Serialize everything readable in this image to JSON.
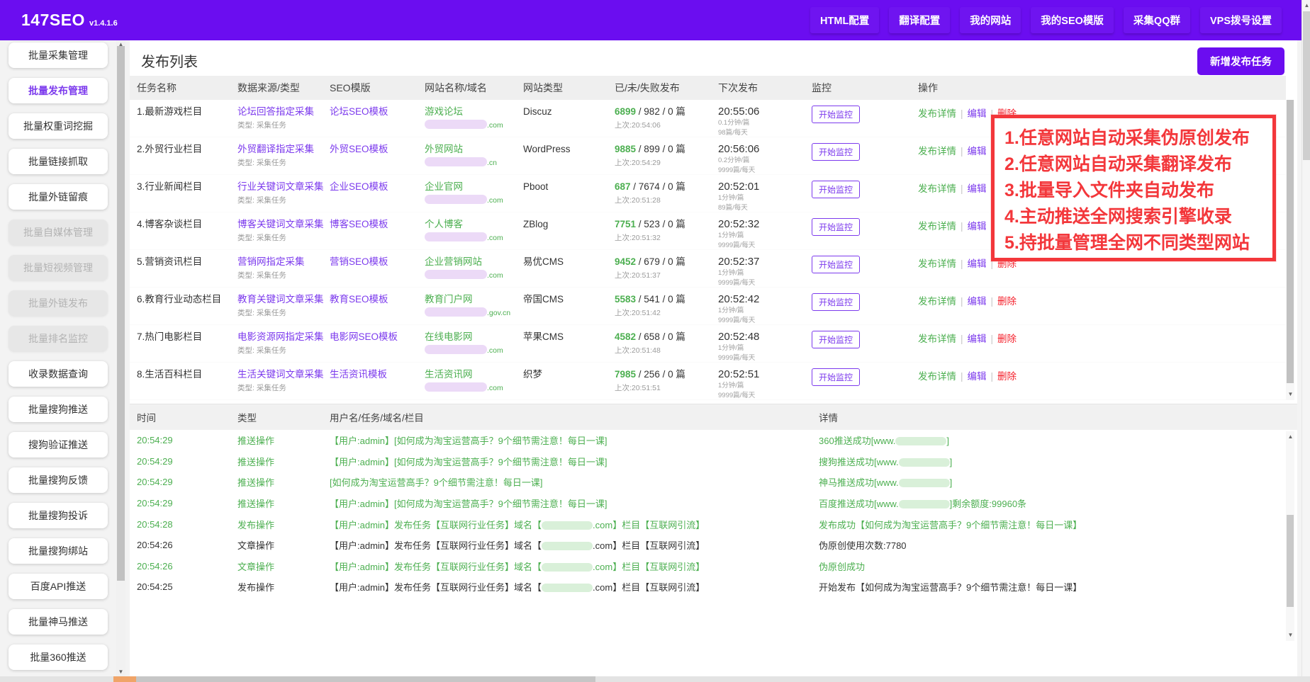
{
  "colors": {
    "brand_purple": "#6b0df0",
    "link_purple": "#7c3aed",
    "green": "#4caf50",
    "delete_red": "#f5222d",
    "annotation_red": "#f3373b"
  },
  "header": {
    "logo": "147SEO",
    "version": "v1.4.1.6",
    "nav": [
      "HTML配置",
      "翻译配置",
      "我的网站",
      "我的SEO模版",
      "采集QQ群",
      "VPS拨号设置"
    ]
  },
  "sidebar": {
    "items": [
      {
        "label": "批量采集管理",
        "state": "normal"
      },
      {
        "label": "批量发布管理",
        "state": "active"
      },
      {
        "label": "批量权重词挖掘",
        "state": "normal"
      },
      {
        "label": "批量链接抓取",
        "state": "normal"
      },
      {
        "label": "批量外链留痕",
        "state": "normal"
      },
      {
        "label": "批量自媒体管理",
        "state": "disabled"
      },
      {
        "label": "批量短视频管理",
        "state": "disabled"
      },
      {
        "label": "批量外链发布",
        "state": "disabled"
      },
      {
        "label": "批量排名监控",
        "state": "disabled"
      },
      {
        "label": "收录数据查询",
        "state": "normal"
      },
      {
        "label": "批量搜狗推送",
        "state": "normal"
      },
      {
        "label": "搜狗验证推送",
        "state": "normal"
      },
      {
        "label": "批量搜狗反馈",
        "state": "normal"
      },
      {
        "label": "批量搜狗投诉",
        "state": "normal"
      },
      {
        "label": "批量搜狗绑站",
        "state": "normal"
      },
      {
        "label": "百度API推送",
        "state": "normal"
      },
      {
        "label": "批量神马推送",
        "state": "normal"
      },
      {
        "label": "批量360推送",
        "state": "normal"
      }
    ]
  },
  "main": {
    "title": "发布列表",
    "new_task_button": "新增发布任务"
  },
  "task_table": {
    "columns": [
      "任务名称",
      "数据来源/类型",
      "SEO模版",
      "网站名称/域名",
      "网站类型",
      "已/未/失败发布",
      "下次发布",
      "监控",
      "操作"
    ],
    "monitor_label": "开始监控",
    "actions": {
      "detail": "发布详情",
      "edit": "编辑",
      "delete": "删除"
    },
    "rows": [
      {
        "name": "1.最新游戏栏目",
        "source": "论坛回答指定采集",
        "source_sub": "类型: 采集任务",
        "template": "论坛SEO模板",
        "site": "游戏论坛",
        "site_suffix": ".com",
        "cms": "Discuz",
        "done": "6899",
        "rest": " / 982 / 0 篇",
        "last": "上次:20:54:06",
        "next": "20:55:06",
        "rate": "0.1分钟/篇",
        "daily": "98篇/每天"
      },
      {
        "name": "2.外贸行业栏目",
        "source": "外贸翻译指定采集",
        "source_sub": "类型: 采集任务",
        "template": "外贸SEO模板",
        "site": "外贸网站",
        "site_suffix": ".cn",
        "cms": "WordPress",
        "done": "9885",
        "rest": " / 899 / 0 篇",
        "last": "上次:20:54:29",
        "next": "20:56:06",
        "rate": "0.2分钟/篇",
        "daily": "9999篇/每天"
      },
      {
        "name": "3.行业新闻栏目",
        "source": "行业关键词文章采集",
        "source_sub": "类型: 采集任务",
        "template": "企业SEO模板",
        "site": "企业官网",
        "site_suffix": ".com",
        "cms": "Pboot",
        "done": "687",
        "rest": " / 7674 / 0 篇",
        "last": "上次:20:51:28",
        "next": "20:52:01",
        "rate": "1分钟/篇",
        "daily": "89篇/每天"
      },
      {
        "name": "4.博客杂谈栏目",
        "source": "博客关键词文章采集",
        "source_sub": "类型: 采集任务",
        "template": "博客SEO模板",
        "site": "个人博客",
        "site_suffix": ".com",
        "cms": "ZBlog",
        "done": "7751",
        "rest": " / 523 / 0 篇",
        "last": "上次:20:51:32",
        "next": "20:52:32",
        "rate": "1分钟/篇",
        "daily": "9999篇/每天"
      },
      {
        "name": "5.营销资讯栏目",
        "source": "营销网指定采集",
        "source_sub": "类型: 采集任务",
        "template": "营销SEO模板",
        "site": "企业营销网站",
        "site_suffix": ".com",
        "cms": "易优CMS",
        "done": "9452",
        "rest": " / 679 / 0 篇",
        "last": "上次:20:51:37",
        "next": "20:52:37",
        "rate": "1分钟/篇",
        "daily": "9999篇/每天"
      },
      {
        "name": "6.教育行业动态栏目",
        "source": "教育关键词文章采集",
        "source_sub": "类型: 采集任务",
        "template": "教育SEO模板",
        "site": "教育门户网",
        "site_suffix": ".gov.cn",
        "cms": "帝国CMS",
        "done": "5583",
        "rest": " / 541 / 0 篇",
        "last": "上次:20:51:42",
        "next": "20:52:42",
        "rate": "1分钟/篇",
        "daily": "9999篇/每天"
      },
      {
        "name": "7.热门电影栏目",
        "source": "电影资源网指定采集",
        "source_sub": "类型: 采集任务",
        "template": "电影网SEO模板",
        "site": "在线电影网",
        "site_suffix": ".com",
        "cms": "苹果CMS",
        "done": "4582",
        "rest": " / 658 / 0 篇",
        "last": "上次:20:51:48",
        "next": "20:52:48",
        "rate": "1分钟/篇",
        "daily": "9999篇/每天"
      },
      {
        "name": "8.生活百科栏目",
        "source": "生活关键词文章采集",
        "source_sub": "类型: 采集任务",
        "template": "生活资讯模板",
        "site": "生活资讯网",
        "site_suffix": ".com",
        "cms": "织梦",
        "done": "7985",
        "rest": " / 256 / 0 篇",
        "last": "上次:20:51:51",
        "next": "20:52:51",
        "rate": "1分钟/篇",
        "daily": "9999篇/每天"
      }
    ]
  },
  "annotation": {
    "lines": [
      "1.任意网站自动采集伪原创发布",
      "2.任意网站自动采集翻译发布",
      "3.批量导入文件夹自动发布",
      "4.主动推送全网搜索引擎收录",
      "5.持批量管理全网不同类型网站"
    ]
  },
  "log_table": {
    "columns": [
      "时间",
      "类型",
      "用户名/任务/域名/栏目",
      "详情"
    ],
    "rows": [
      {
        "time": "20:54:29",
        "type": "推送操作",
        "msg_prefix": "【用户:admin】[如何成为淘宝运营高手？9个细节需注意！每日一课]",
        "msg_blur": false,
        "msg_suffix": "",
        "detail_prefix": "360推送成功[www.",
        "detail_blur": true,
        "detail_suffix": "]",
        "color": "green"
      },
      {
        "time": "20:54:29",
        "type": "推送操作",
        "msg_prefix": "【用户:admin】[如何成为淘宝运营高手？9个细节需注意！每日一课]",
        "msg_blur": false,
        "msg_suffix": "",
        "detail_prefix": "搜狗推送成功[www.",
        "detail_blur": true,
        "detail_suffix": "]",
        "color": "green"
      },
      {
        "time": "20:54:29",
        "type": "推送操作",
        "msg_prefix": "[如何成为淘宝运营高手？9个细节需注意！每日一课]",
        "msg_blur": false,
        "msg_suffix": "",
        "detail_prefix": "神马推送成功[www.",
        "detail_blur": true,
        "detail_suffix": "]",
        "color": "green"
      },
      {
        "time": "20:54:29",
        "type": "推送操作",
        "msg_prefix": "【用户:admin】[如何成为淘宝运营高手？9个细节需注意！每日一课]",
        "msg_blur": false,
        "msg_suffix": "",
        "detail_prefix": "百度推送成功[www.",
        "detail_blur": true,
        "detail_suffix": "]剩余额度:99960条",
        "color": "green"
      },
      {
        "time": "20:54:28",
        "type": "发布操作",
        "msg_prefix": "【用户:admin】发布任务【互联网行业任务】域名【",
        "msg_blur": true,
        "msg_suffix": ".com】栏目【互联网引流】",
        "detail_prefix": "发布成功【如何成为淘宝运营高手？9个细节需注意！每日一课】",
        "detail_blur": false,
        "detail_suffix": "",
        "color": "green"
      },
      {
        "time": "20:54:26",
        "type": "文章操作",
        "msg_prefix": "【用户:admin】发布任务【互联网行业任务】域名【",
        "msg_blur": true,
        "msg_suffix": ".com】栏目【互联网引流】",
        "detail_prefix": "伪原创使用次数:7780",
        "detail_blur": false,
        "detail_suffix": "",
        "color": "dark"
      },
      {
        "time": "20:54:26",
        "type": "文章操作",
        "msg_prefix": "【用户:admin】发布任务【互联网行业任务】域名【",
        "msg_blur": true,
        "msg_suffix": ".com】栏目【互联网引流】",
        "detail_prefix": "伪原创成功",
        "detail_blur": false,
        "detail_suffix": "",
        "color": "green"
      },
      {
        "time": "20:54:25",
        "type": "发布操作",
        "msg_prefix": "【用户:admin】发布任务【互联网行业任务】域名【",
        "msg_blur": true,
        "msg_suffix": ".com】栏目【互联网引流】",
        "detail_prefix": "开始发布【如何成为淘宝运营高手？9个细节需注意！每日一课】",
        "detail_blur": false,
        "detail_suffix": "",
        "color": "dark"
      }
    ]
  }
}
